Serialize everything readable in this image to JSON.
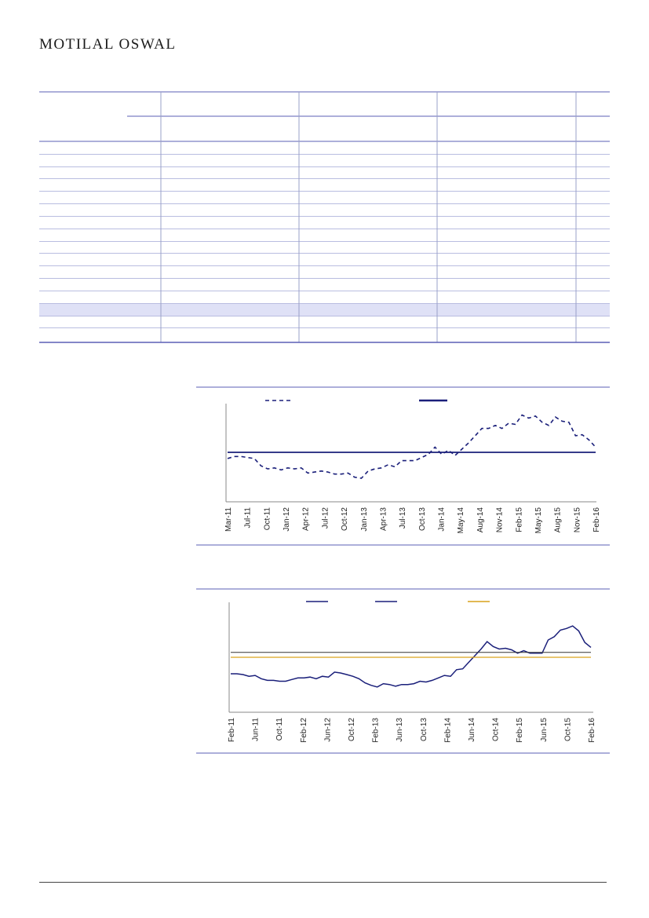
{
  "header": {
    "brand": "MOTILAL OSWAL"
  },
  "table": {
    "rows": 15,
    "highlighted_row": 13
  },
  "colors": {
    "rule": "#5b5fb5",
    "highlight": "#dfe1f6",
    "series_dark": "#1a1f7a",
    "series_gold": "#d9a21a"
  },
  "chart_data": [
    {
      "type": "line",
      "x_ticks": [
        "Mar-11",
        "Jul-11",
        "Oct-11",
        "Jan-12",
        "Apr-12",
        "Jul-12",
        "Oct-12",
        "Jan-13",
        "Apr-13",
        "Jul-13",
        "Oct-13",
        "Jan-14",
        "May-14",
        "Aug-14",
        "Nov-14",
        "Feb-15",
        "May-15",
        "Aug-15",
        "Nov-15",
        "Feb-16"
      ],
      "series": [
        {
          "style": "dashed",
          "values": [
            -0.6,
            -0.4,
            -0.4,
            -0.5,
            -0.6,
            -1.3,
            -1.6,
            -1.5,
            -1.7,
            -1.5,
            -1.6,
            -1.5,
            -2.0,
            -1.9,
            -1.8,
            -1.9,
            -2.1,
            -2.1,
            -2.0,
            -2.4,
            -2.5,
            -1.8,
            -1.6,
            -1.5,
            -1.2,
            -1.4,
            -0.8,
            -0.8,
            -0.8,
            -0.5,
            -0.2,
            0.5,
            -0.2,
            0.2,
            -0.3,
            0.3,
            0.9,
            1.6,
            2.3,
            2.3,
            2.6,
            2.3,
            2.8,
            2.7,
            3.6,
            3.3,
            3.5,
            2.9,
            2.6,
            3.4,
            3.0,
            2.9,
            1.6,
            1.7,
            1.2,
            0.5
          ]
        },
        {
          "style": "solid",
          "values": [
            0,
            0,
            0,
            0,
            0,
            0,
            0,
            0,
            0,
            0,
            0,
            0,
            0,
            0,
            0,
            0,
            0,
            0,
            0,
            0,
            0,
            0,
            0,
            0,
            0,
            0,
            0,
            0,
            0,
            0,
            0,
            0,
            0,
            0,
            0,
            0,
            0,
            0,
            0,
            0,
            0,
            0,
            0,
            0,
            0,
            0,
            0,
            0,
            0,
            0,
            0,
            0,
            0,
            0,
            0,
            0
          ]
        }
      ]
    },
    {
      "type": "line",
      "x_ticks": [
        "Feb-11",
        "Jun-11",
        "Oct-11",
        "Feb-12",
        "Jun-12",
        "Oct-12",
        "Feb-13",
        "Jun-13",
        "Oct-13",
        "Feb-14",
        "Jun-14",
        "Oct-14",
        "Feb-15",
        "Jun-15",
        "Oct-15",
        "Feb-16"
      ],
      "series": [
        {
          "style": "solid-dark",
          "values": [
            -2.0,
            -2.0,
            -2.1,
            -2.3,
            -2.2,
            -2.6,
            -2.8,
            -2.8,
            -2.9,
            -2.9,
            -2.7,
            -2.5,
            -2.5,
            -2.4,
            -2.6,
            -2.3,
            -2.4,
            -1.8,
            -1.9,
            -2.1,
            -2.3,
            -2.6,
            -3.1,
            -3.4,
            -3.6,
            -3.2,
            -3.3,
            -3.5,
            -3.3,
            -3.3,
            -3.2,
            -2.9,
            -3.0,
            -2.8,
            -2.5,
            -2.2,
            -2.3,
            -1.5,
            -1.4,
            -0.6,
            0.2,
            1.0,
            1.9,
            1.3,
            1.0,
            1.1,
            0.9,
            0.5,
            0.8,
            0.5,
            0.5,
            0.5,
            2.1,
            2.5,
            3.3,
            3.5,
            3.8,
            3.2,
            1.8,
            1.2
          ]
        },
        {
          "style": "flat-dark",
          "values": [
            0.6,
            0.6
          ]
        },
        {
          "style": "flat-gold",
          "values": [
            0.0,
            0.0
          ]
        }
      ]
    }
  ]
}
